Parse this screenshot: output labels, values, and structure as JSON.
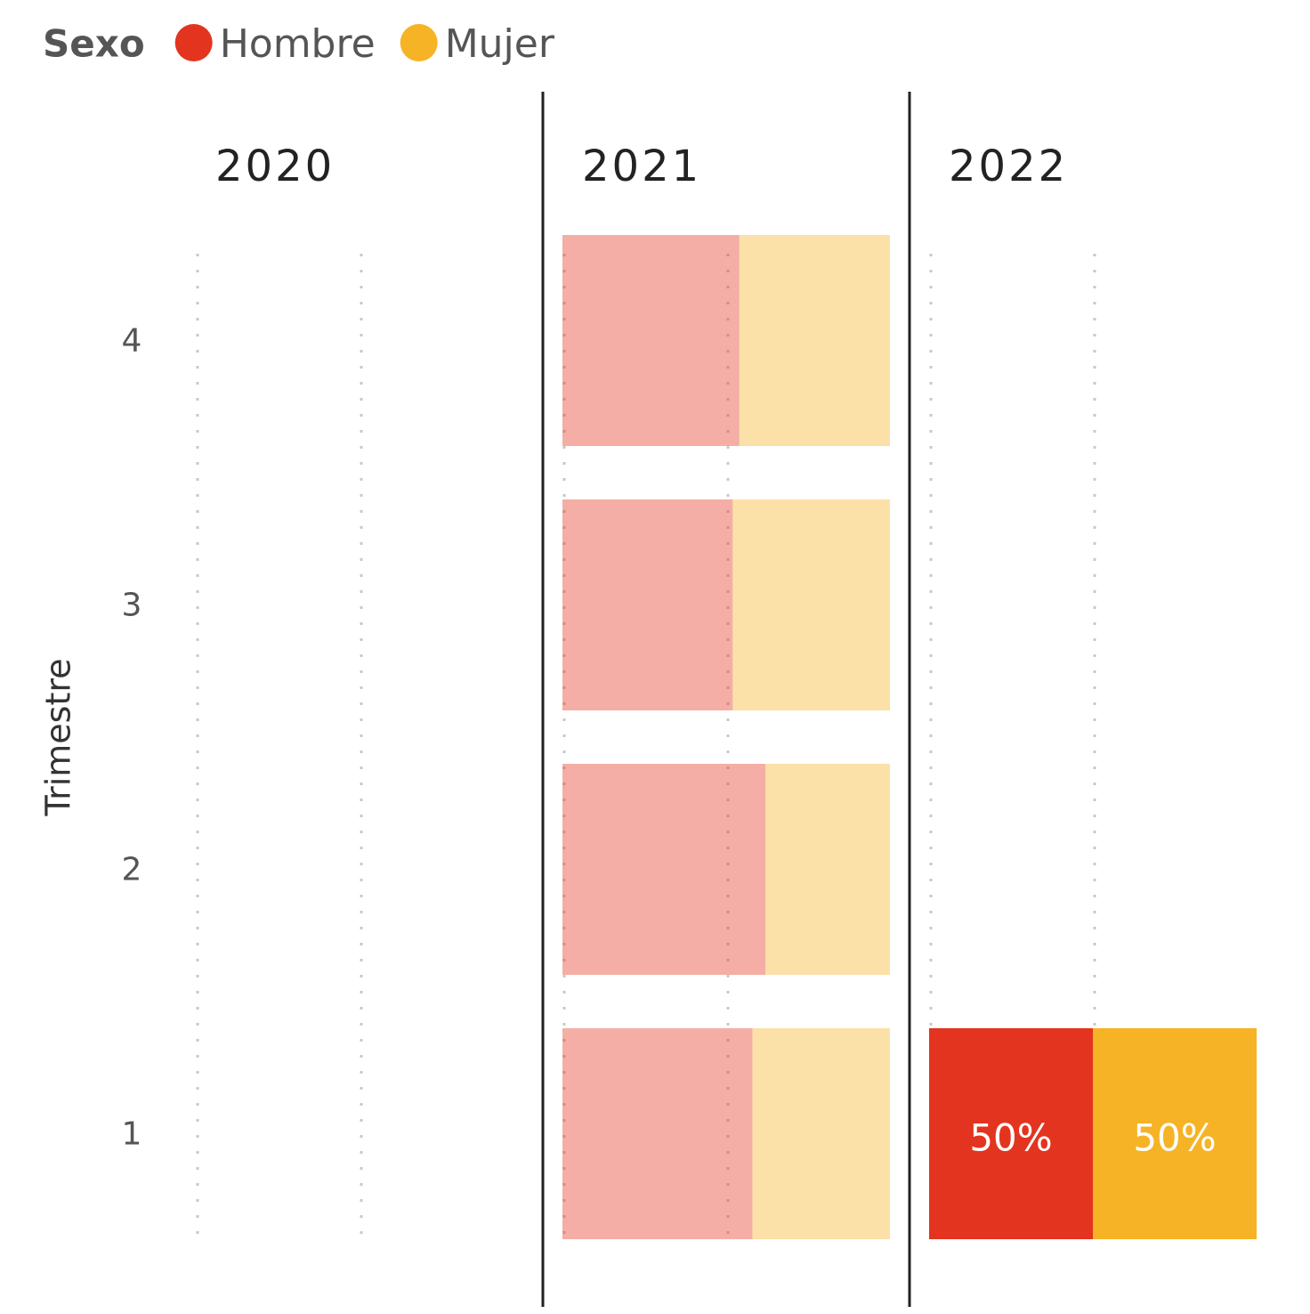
{
  "chart_data": {
    "type": "bar",
    "stacked": true,
    "orientation": "horizontal",
    "legend_title": "Sexo",
    "ylabel": "Trimestre",
    "categories": [
      "4",
      "3",
      "2",
      "1"
    ],
    "xlim": [
      0,
      100
    ],
    "xticks": [
      0,
      50
    ],
    "grid": true,
    "series": [
      {
        "name": "Hombre",
        "color": "#e3341f"
      },
      {
        "name": "Mujer",
        "color": "#f6b325"
      }
    ],
    "facets": [
      {
        "title": "2020",
        "faded": false,
        "values": [
          [
            null,
            null,
            null,
            null
          ],
          [
            null,
            null,
            null,
            null
          ]
        ]
      },
      {
        "title": "2021",
        "faded": true,
        "values": [
          [
            54,
            52,
            62,
            58
          ],
          [
            46,
            48,
            38,
            42
          ]
        ]
      },
      {
        "title": "2022",
        "faded": false,
        "values": [
          [
            null,
            null,
            null,
            50
          ],
          [
            null,
            null,
            null,
            50
          ]
        ],
        "value_labels": [
          [
            null,
            null,
            null,
            "50%"
          ],
          [
            null,
            null,
            null,
            "50%"
          ]
        ]
      }
    ]
  }
}
